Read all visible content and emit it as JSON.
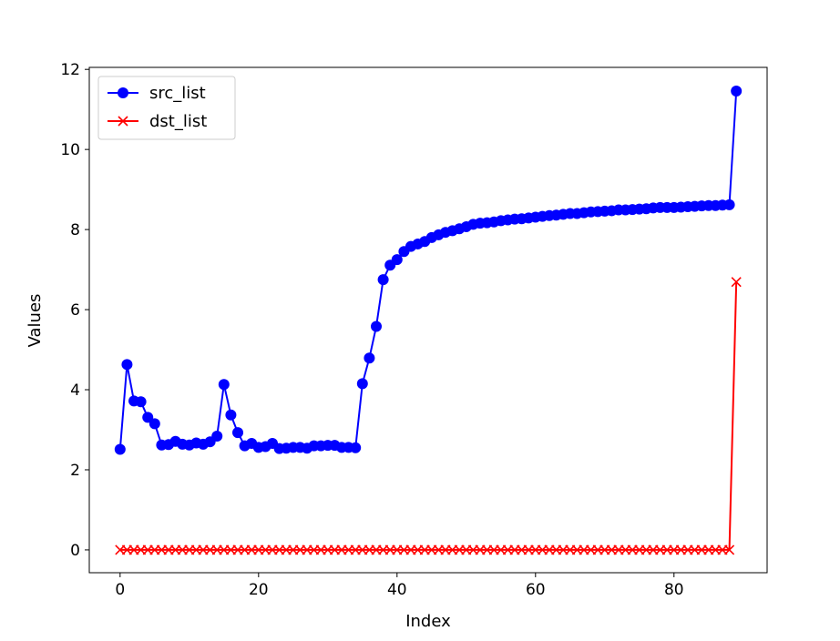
{
  "chart_data": {
    "type": "line",
    "title": "",
    "xlabel": "Index",
    "ylabel": "Values",
    "xlim": [
      -4.45,
      93.45
    ],
    "ylim": [
      -0.57,
      12.05
    ],
    "xticks": [
      0,
      20,
      40,
      60,
      80
    ],
    "yticks": [
      0,
      2,
      4,
      6,
      8,
      10,
      12
    ],
    "grid": false,
    "legend": "top-left",
    "series": [
      {
        "name": "src_list",
        "color": "#0000ff",
        "marker": "circle",
        "x": [
          0,
          1,
          2,
          3,
          4,
          5,
          6,
          7,
          8,
          9,
          10,
          11,
          12,
          13,
          14,
          15,
          16,
          17,
          18,
          19,
          20,
          21,
          22,
          23,
          24,
          25,
          26,
          27,
          28,
          29,
          30,
          31,
          32,
          33,
          34,
          35,
          36,
          37,
          38,
          39,
          40,
          41,
          42,
          43,
          44,
          45,
          46,
          47,
          48,
          49,
          50,
          51,
          52,
          53,
          54,
          55,
          56,
          57,
          58,
          59,
          60,
          61,
          62,
          63,
          64,
          65,
          66,
          67,
          68,
          69,
          70,
          71,
          72,
          73,
          74,
          75,
          76,
          77,
          78,
          79,
          80,
          81,
          82,
          83,
          84,
          85,
          86,
          87,
          88,
          89
        ],
        "values": [
          2.51,
          4.63,
          3.72,
          3.7,
          3.31,
          3.15,
          2.62,
          2.63,
          2.71,
          2.64,
          2.62,
          2.67,
          2.64,
          2.7,
          2.84,
          4.13,
          3.37,
          2.93,
          2.6,
          2.66,
          2.56,
          2.58,
          2.66,
          2.53,
          2.54,
          2.56,
          2.56,
          2.54,
          2.6,
          2.6,
          2.61,
          2.61,
          2.56,
          2.56,
          2.55,
          4.15,
          4.79,
          5.58,
          6.75,
          7.11,
          7.25,
          7.45,
          7.58,
          7.64,
          7.7,
          7.8,
          7.87,
          7.93,
          7.97,
          8.02,
          8.07,
          8.13,
          8.16,
          8.17,
          8.19,
          8.22,
          8.24,
          8.26,
          8.27,
          8.29,
          8.31,
          8.33,
          8.35,
          8.36,
          8.38,
          8.4,
          8.4,
          8.42,
          8.44,
          8.45,
          8.46,
          8.47,
          8.49,
          8.49,
          8.5,
          8.51,
          8.52,
          8.54,
          8.55,
          8.55,
          8.55,
          8.56,
          8.57,
          8.58,
          8.59,
          8.6,
          8.6,
          8.61,
          8.62,
          11.46
        ]
      },
      {
        "name": "dst_list",
        "color": "#ff0000",
        "marker": "x",
        "x": [
          0,
          1,
          2,
          3,
          4,
          5,
          6,
          7,
          8,
          9,
          10,
          11,
          12,
          13,
          14,
          15,
          16,
          17,
          18,
          19,
          20,
          21,
          22,
          23,
          24,
          25,
          26,
          27,
          28,
          29,
          30,
          31,
          32,
          33,
          34,
          35,
          36,
          37,
          38,
          39,
          40,
          41,
          42,
          43,
          44,
          45,
          46,
          47,
          48,
          49,
          50,
          51,
          52,
          53,
          54,
          55,
          56,
          57,
          58,
          59,
          60,
          61,
          62,
          63,
          64,
          65,
          66,
          67,
          68,
          69,
          70,
          71,
          72,
          73,
          74,
          75,
          76,
          77,
          78,
          79,
          80,
          81,
          82,
          83,
          84,
          85,
          86,
          87,
          88,
          89
        ],
        "values": [
          0,
          0,
          0,
          0,
          0,
          0,
          0,
          0,
          0,
          0,
          0,
          0,
          0,
          0,
          0,
          0,
          0,
          0,
          0,
          0,
          0,
          0,
          0,
          0,
          0,
          0,
          0,
          0,
          0,
          0,
          0,
          0,
          0,
          0,
          0,
          0,
          0,
          0,
          0,
          0,
          0,
          0,
          0,
          0,
          0,
          0,
          0,
          0,
          0,
          0,
          0,
          0,
          0,
          0,
          0,
          0,
          0,
          0,
          0,
          0,
          0,
          0,
          0,
          0,
          0,
          0,
          0,
          0,
          0,
          0,
          0,
          0,
          0,
          0,
          0,
          0,
          0,
          0,
          0,
          0,
          0,
          0,
          0,
          0,
          0,
          0,
          0,
          0,
          0,
          6.69
        ]
      }
    ]
  }
}
